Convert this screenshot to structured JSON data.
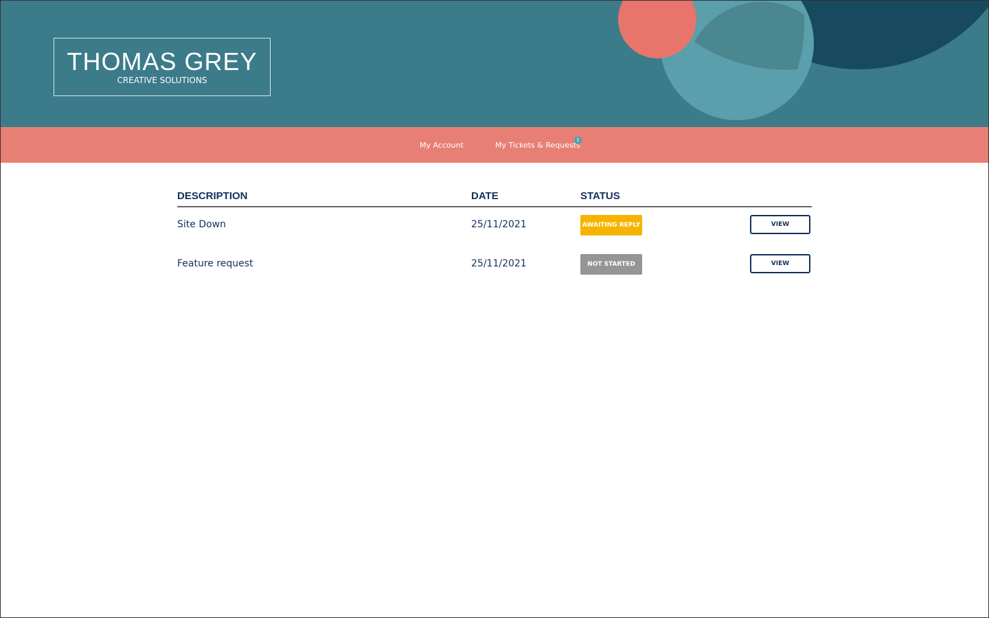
{
  "header": {
    "brand": "THOMAS GREY",
    "tagline": "CREATIVE SOLUTIONS"
  },
  "nav": {
    "items": [
      "My Account",
      "My Tickets & Requests"
    ],
    "badge": "1"
  },
  "table": {
    "columns": [
      "DESCRIPTION",
      "DATE",
      "STATUS"
    ],
    "rows": [
      {
        "description": "Site Down",
        "date": "25/11/2021",
        "status": "AWAITING REPLY",
        "action": "VIEW"
      },
      {
        "description": "Feature request",
        "date": "25/11/2021",
        "status": "NOT STARTED",
        "action": "VIEW"
      }
    ]
  }
}
